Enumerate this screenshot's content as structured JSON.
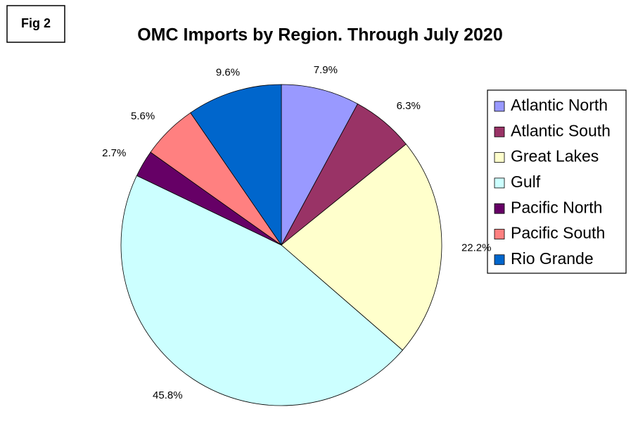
{
  "figure_label": "Fig 2",
  "chart_data": {
    "type": "pie",
    "title": "OMC Imports by Region. Through July 2020",
    "categories": [
      "Atlantic North",
      "Atlantic South",
      "Great Lakes",
      "Gulf",
      "Pacific North",
      "Pacific South",
      "Rio Grande"
    ],
    "values": [
      7.9,
      6.3,
      22.2,
      45.8,
      2.7,
      5.6,
      9.6
    ],
    "value_labels": [
      "7.9%",
      "6.3%",
      "22.2%",
      "45.8%",
      "2.7%",
      "5.6%",
      "9.6%"
    ],
    "colors": [
      "#9999ff",
      "#993366",
      "#ffffcc",
      "#ccffff",
      "#660066",
      "#ff8080",
      "#0066cc"
    ],
    "legend": "right"
  }
}
